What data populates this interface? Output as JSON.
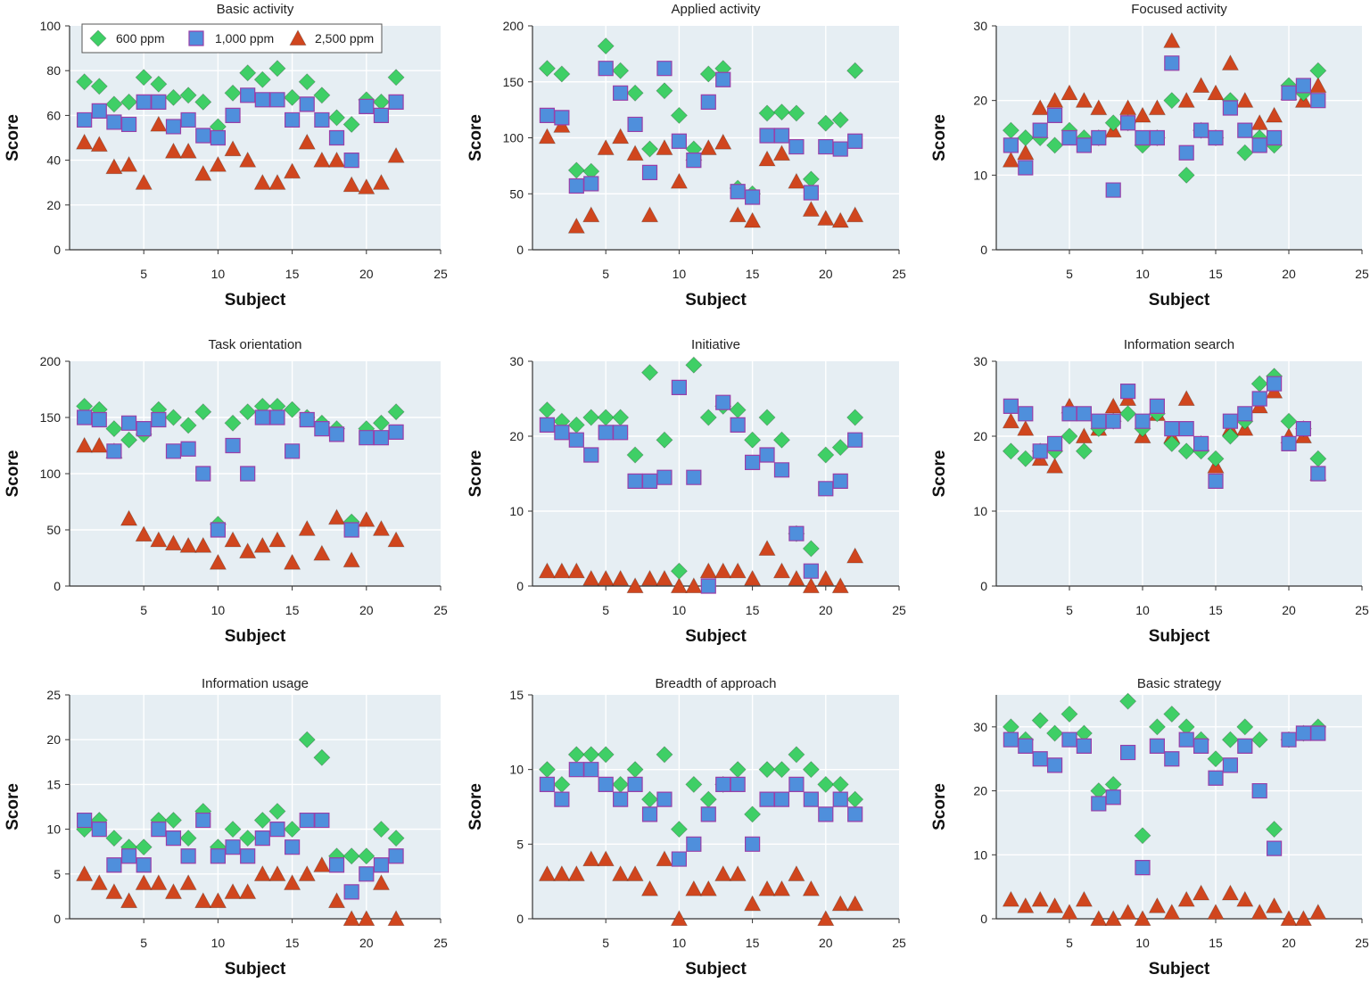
{
  "colors": {
    "series_600": "#3fcf66",
    "series_1000": "#4f8fdc",
    "series_2500": "#d0461e",
    "panel_bg": "#e6eef3",
    "grid": "#ffffff"
  },
  "legend": {
    "items": [
      "600 ppm",
      "1,000 ppm",
      "2,500 ppm"
    ]
  },
  "chart_data": [
    {
      "type": "scatter",
      "title": "Basic activity",
      "xlabel": "Subject",
      "ylabel": "Score",
      "xlim": [
        0,
        25
      ],
      "ylim": [
        0,
        100
      ],
      "xticks": [
        5,
        10,
        15,
        20,
        25
      ],
      "yticks": [
        0,
        20,
        40,
        60,
        80,
        100
      ],
      "grid": true,
      "legend": "top-left",
      "x": [
        1,
        2,
        3,
        4,
        5,
        6,
        7,
        8,
        9,
        10,
        11,
        12,
        13,
        14,
        15,
        16,
        17,
        18,
        19,
        20,
        21,
        22
      ],
      "series": [
        {
          "name": "600 ppm",
          "values": [
            75,
            73,
            65,
            66,
            77,
            74,
            68,
            69,
            66,
            55,
            70,
            79,
            76,
            81,
            68,
            75,
            69,
            59,
            56,
            67,
            66,
            77
          ]
        },
        {
          "name": "1,000 ppm",
          "values": [
            58,
            62,
            57,
            56,
            66,
            66,
            55,
            58,
            51,
            50,
            60,
            69,
            67,
            67,
            58,
            65,
            58,
            50,
            40,
            64,
            60,
            66
          ]
        },
        {
          "name": "2,500 ppm",
          "values": [
            48,
            47,
            37,
            38,
            30,
            56,
            44,
            44,
            34,
            38,
            45,
            40,
            30,
            30,
            35,
            48,
            40,
            40,
            29,
            28,
            30,
            42
          ]
        }
      ]
    },
    {
      "type": "scatter",
      "title": "Applied activity",
      "xlabel": "Subject",
      "ylabel": "Score",
      "xlim": [
        0,
        25
      ],
      "ylim": [
        0,
        200
      ],
      "xticks": [
        5,
        10,
        15,
        20,
        25
      ],
      "yticks": [
        0,
        50,
        100,
        150,
        200
      ],
      "grid": true,
      "x": [
        1,
        2,
        3,
        4,
        5,
        6,
        7,
        8,
        9,
        10,
        11,
        12,
        13,
        14,
        15,
        16,
        17,
        18,
        19,
        20,
        21,
        22
      ],
      "series": [
        {
          "name": "600 ppm",
          "values": [
            162,
            157,
            71,
            70,
            182,
            160,
            140,
            90,
            142,
            120,
            90,
            157,
            162,
            55,
            50,
            122,
            123,
            122,
            63,
            113,
            116,
            160
          ]
        },
        {
          "name": "1,000 ppm",
          "values": [
            120,
            118,
            57,
            59,
            162,
            140,
            112,
            69,
            162,
            97,
            80,
            132,
            152,
            52,
            47,
            102,
            102,
            92,
            51,
            92,
            90,
            97
          ]
        },
        {
          "name": "2,500 ppm",
          "values": [
            101,
            111,
            21,
            31,
            91,
            101,
            86,
            31,
            91,
            61,
            86,
            91,
            96,
            31,
            26,
            81,
            86,
            61,
            36,
            28,
            26,
            31
          ]
        }
      ]
    },
    {
      "type": "scatter",
      "title": "Focused activity",
      "xlabel": "Subject",
      "ylabel": "Score",
      "xlim": [
        0,
        25
      ],
      "ylim": [
        0,
        30
      ],
      "xticks": [
        5,
        10,
        15,
        20,
        25
      ],
      "yticks": [
        0,
        10,
        20,
        30
      ],
      "grid": true,
      "x": [
        1,
        2,
        3,
        4,
        5,
        6,
        7,
        8,
        9,
        10,
        11,
        12,
        13,
        14,
        15,
        16,
        17,
        18,
        19,
        20,
        21,
        22
      ],
      "series": [
        {
          "name": "600 ppm",
          "values": [
            16,
            15,
            15,
            14,
            16,
            15,
            15,
            17,
            17,
            14,
            15,
            20,
            10,
            16,
            15,
            20,
            13,
            15,
            14,
            22,
            21,
            24
          ]
        },
        {
          "name": "1,000 ppm",
          "values": [
            14,
            11,
            16,
            18,
            15,
            14,
            15,
            8,
            17,
            15,
            15,
            25,
            13,
            16,
            15,
            19,
            16,
            14,
            15,
            21,
            22,
            20
          ]
        },
        {
          "name": "2,500 ppm",
          "values": [
            12,
            13,
            19,
            20,
            21,
            20,
            19,
            16,
            19,
            18,
            19,
            28,
            20,
            22,
            21,
            25,
            20,
            17,
            18,
            21,
            20,
            22
          ]
        }
      ]
    },
    {
      "type": "scatter",
      "title": "Task orientation",
      "xlabel": "Subject",
      "ylabel": "Score",
      "xlim": [
        0,
        25
      ],
      "ylim": [
        0,
        200
      ],
      "xticks": [
        5,
        10,
        15,
        20,
        25
      ],
      "yticks": [
        0,
        50,
        100,
        150,
        200
      ],
      "grid": true,
      "x": [
        1,
        2,
        3,
        4,
        5,
        6,
        7,
        8,
        9,
        10,
        11,
        12,
        13,
        14,
        15,
        16,
        17,
        18,
        19,
        20,
        21,
        22
      ],
      "series": [
        {
          "name": "600 ppm",
          "values": [
            160,
            157,
            140,
            130,
            135,
            157,
            150,
            143,
            155,
            55,
            145,
            155,
            160,
            160,
            157,
            150,
            145,
            140,
            57,
            140,
            145,
            155
          ]
        },
        {
          "name": "1,000 ppm",
          "values": [
            150,
            148,
            120,
            145,
            140,
            148,
            120,
            122,
            100,
            50,
            125,
            100,
            150,
            150,
            120,
            148,
            140,
            135,
            50,
            132,
            132,
            137
          ]
        },
        {
          "name": "2,500 ppm",
          "values": [
            125,
            125,
            120,
            60,
            46,
            41,
            38,
            36,
            36,
            21,
            41,
            31,
            36,
            41,
            21,
            51,
            29,
            61,
            23,
            59,
            51,
            41
          ]
        }
      ]
    },
    {
      "type": "scatter",
      "title": "Initiative",
      "xlabel": "Subject",
      "ylabel": "Score",
      "xlim": [
        0,
        25
      ],
      "ylim": [
        0,
        30
      ],
      "xticks": [
        5,
        10,
        15,
        20,
        25
      ],
      "yticks": [
        0,
        10,
        20,
        30
      ],
      "grid": true,
      "x": [
        1,
        2,
        3,
        4,
        5,
        6,
        7,
        8,
        9,
        10,
        11,
        12,
        13,
        14,
        15,
        16,
        17,
        18,
        19,
        20,
        21,
        22
      ],
      "series": [
        {
          "name": "600 ppm",
          "values": [
            23.5,
            22,
            21.5,
            22.5,
            22.5,
            22.5,
            17.5,
            28.5,
            19.5,
            2,
            29.5,
            22.5,
            24,
            23.5,
            19.5,
            22.5,
            19.5,
            7,
            5,
            17.5,
            18.5,
            22.5
          ]
        },
        {
          "name": "1,000 ppm",
          "values": [
            21.5,
            20.5,
            19.5,
            17.5,
            20.5,
            20.5,
            14,
            14,
            14.5,
            26.5,
            14.5,
            0,
            24.5,
            21.5,
            16.5,
            17.5,
            15.5,
            7,
            2,
            13,
            14,
            19.5
          ]
        },
        {
          "name": "2,500 ppm",
          "values": [
            2,
            2,
            2,
            1,
            1,
            1,
            0,
            1,
            1,
            0,
            0,
            2,
            2,
            2,
            1,
            5,
            2,
            1,
            0,
            1,
            0,
            4
          ]
        }
      ]
    },
    {
      "type": "scatter",
      "title": "Information search",
      "xlabel": "Subject",
      "ylabel": "Score",
      "xlim": [
        0,
        25
      ],
      "ylim": [
        0,
        30
      ],
      "xticks": [
        5,
        10,
        15,
        20,
        25
      ],
      "yticks": [
        0,
        10,
        20,
        30
      ],
      "grid": true,
      "x": [
        1,
        2,
        3,
        4,
        5,
        6,
        7,
        8,
        9,
        10,
        11,
        12,
        13,
        14,
        15,
        16,
        17,
        18,
        19,
        20,
        21,
        22
      ],
      "series": [
        {
          "name": "600 ppm",
          "values": [
            18,
            17,
            18,
            18,
            20,
            18,
            21,
            22,
            23,
            21,
            23,
            19,
            18,
            18,
            17,
            20,
            22,
            27,
            28,
            22,
            21,
            17
          ]
        },
        {
          "name": "1,000 ppm",
          "values": [
            24,
            23,
            18,
            19,
            23,
            23,
            22,
            22,
            26,
            22,
            24,
            21,
            21,
            19,
            14,
            22,
            23,
            25,
            27,
            19,
            21,
            15
          ]
        },
        {
          "name": "2,500 ppm",
          "values": [
            22,
            21,
            17,
            16,
            24,
            20,
            21,
            24,
            25,
            20,
            23,
            20,
            25,
            19,
            16,
            21,
            21,
            24,
            26,
            20,
            20,
            15
          ]
        }
      ]
    },
    {
      "type": "scatter",
      "title": "Information usage",
      "xlabel": "Subject",
      "ylabel": "Score",
      "xlim": [
        0,
        25
      ],
      "ylim": [
        0,
        25
      ],
      "xticks": [
        5,
        10,
        15,
        20,
        25
      ],
      "yticks": [
        0,
        5,
        10,
        15,
        20,
        25
      ],
      "grid": true,
      "x": [
        1,
        2,
        3,
        4,
        5,
        6,
        7,
        8,
        9,
        10,
        11,
        12,
        13,
        14,
        15,
        16,
        17,
        18,
        19,
        20,
        21,
        22
      ],
      "series": [
        {
          "name": "600 ppm",
          "values": [
            10,
            11,
            9,
            8,
            8,
            11,
            11,
            9,
            12,
            8,
            10,
            9,
            11,
            12,
            10,
            20,
            18,
            7,
            7,
            7,
            10,
            9
          ]
        },
        {
          "name": "1,000 ppm",
          "values": [
            11,
            10,
            6,
            7,
            6,
            10,
            9,
            7,
            11,
            7,
            8,
            7,
            9,
            10,
            8,
            11,
            11,
            6,
            3,
            5,
            6,
            7
          ]
        },
        {
          "name": "2,500 ppm",
          "values": [
            5,
            4,
            3,
            2,
            4,
            4,
            3,
            4,
            2,
            2,
            3,
            3,
            5,
            5,
            4,
            5,
            6,
            2,
            0,
            0,
            4,
            0
          ]
        }
      ]
    },
    {
      "type": "scatter",
      "title": "Breadth of approach",
      "xlabel": "Subject",
      "ylabel": "Score",
      "xlim": [
        0,
        25
      ],
      "ylim": [
        0,
        15
      ],
      "xticks": [
        5,
        10,
        15,
        20,
        25
      ],
      "yticks": [
        0,
        5,
        10,
        15
      ],
      "grid": true,
      "x": [
        1,
        2,
        3,
        4,
        5,
        6,
        7,
        8,
        9,
        10,
        11,
        12,
        13,
        14,
        15,
        16,
        17,
        18,
        19,
        20,
        21,
        22
      ],
      "series": [
        {
          "name": "600 ppm",
          "values": [
            10,
            9,
            11,
            11,
            11,
            9,
            10,
            8,
            11,
            6,
            9,
            8,
            9,
            10,
            7,
            10,
            10,
            11,
            10,
            9,
            9,
            8
          ]
        },
        {
          "name": "1,000 ppm",
          "values": [
            9,
            8,
            10,
            10,
            9,
            8,
            9,
            7,
            8,
            4,
            5,
            7,
            9,
            9,
            5,
            8,
            8,
            9,
            8,
            7,
            8,
            7
          ]
        },
        {
          "name": "2,500 ppm",
          "values": [
            3,
            3,
            3,
            4,
            4,
            3,
            3,
            2,
            4,
            0,
            2,
            2,
            3,
            3,
            1,
            2,
            2,
            3,
            2,
            0,
            1,
            1
          ]
        }
      ]
    },
    {
      "type": "scatter",
      "title": "Basic strategy",
      "xlabel": "Subject",
      "ylabel": "Score",
      "xlim": [
        0,
        25
      ],
      "ylim": [
        0,
        35
      ],
      "xticks": [
        5,
        10,
        15,
        20,
        25
      ],
      "yticks": [
        0,
        10,
        20,
        30
      ],
      "grid": true,
      "x": [
        1,
        2,
        3,
        4,
        5,
        6,
        7,
        8,
        9,
        10,
        11,
        12,
        13,
        14,
        15,
        16,
        17,
        18,
        19,
        20,
        21,
        22
      ],
      "series": [
        {
          "name": "600 ppm",
          "values": [
            30,
            28,
            31,
            29,
            32,
            29,
            20,
            21,
            34,
            13,
            30,
            32,
            30,
            28,
            25,
            28,
            30,
            28,
            14,
            28,
            29,
            30
          ]
        },
        {
          "name": "1,000 ppm",
          "values": [
            28,
            27,
            25,
            24,
            28,
            27,
            18,
            19,
            26,
            8,
            27,
            25,
            28,
            27,
            22,
            24,
            27,
            20,
            11,
            28,
            29,
            29
          ]
        },
        {
          "name": "2,500 ppm",
          "values": [
            3,
            2,
            3,
            2,
            1,
            3,
            0,
            0,
            1,
            0,
            2,
            1,
            3,
            4,
            1,
            4,
            3,
            1,
            2,
            0,
            0,
            1
          ]
        }
      ]
    }
  ]
}
